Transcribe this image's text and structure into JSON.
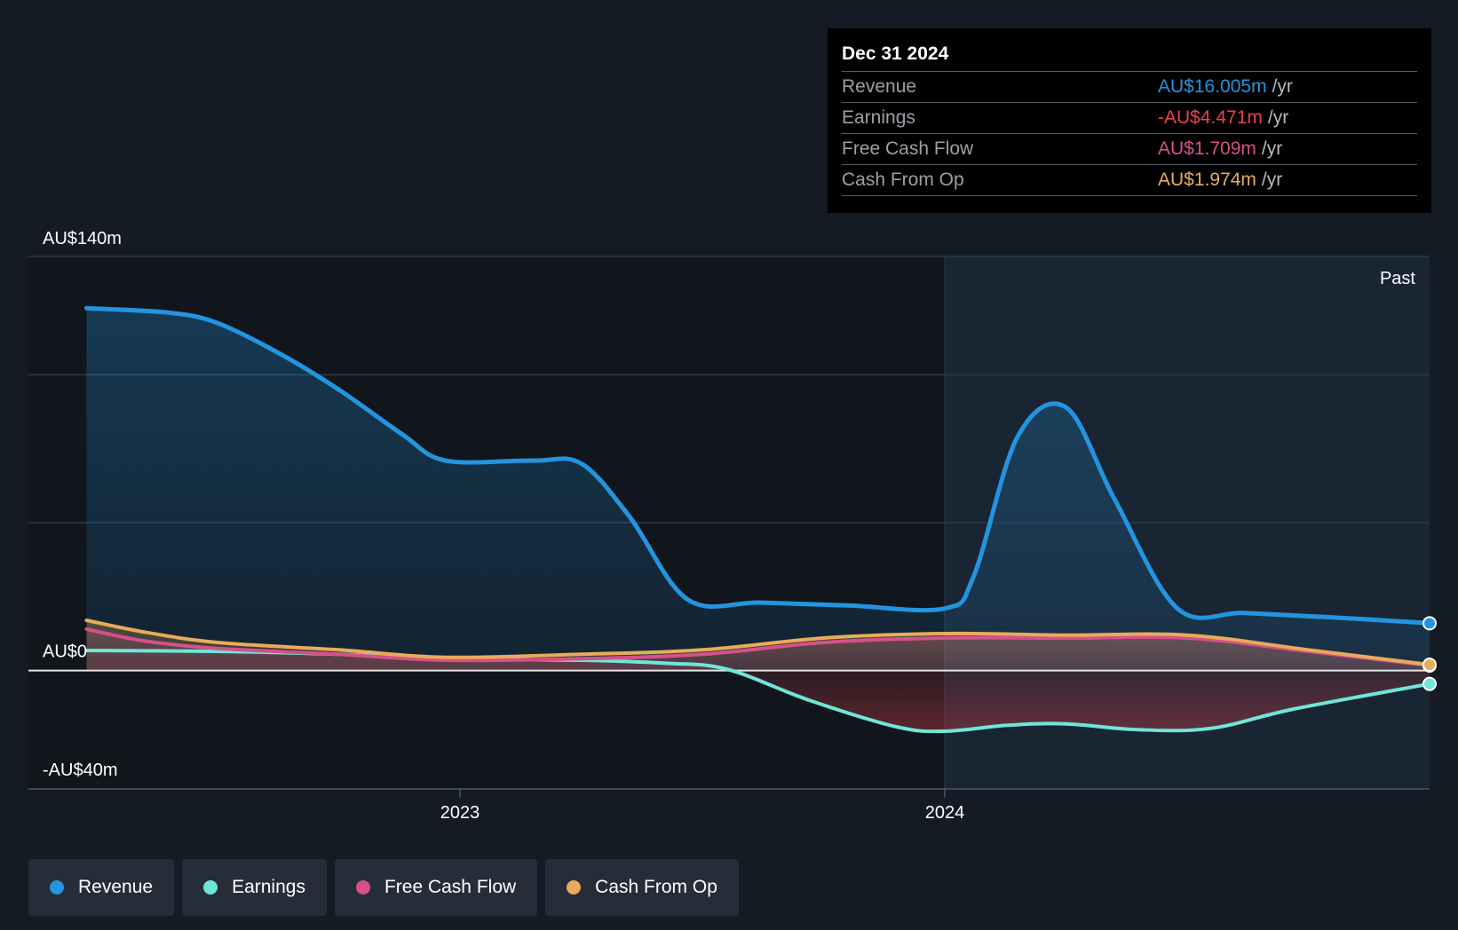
{
  "colors": {
    "background": "#151b24",
    "revenue": "#2394df",
    "earnings": "#6ee7d8",
    "free_cash_flow": "#d6508a",
    "cash_from_op": "#e9ab5a",
    "earnings_negative": "#e8424b"
  },
  "tooltip": {
    "date": "Dec 31 2024",
    "rows": [
      {
        "label": "Revenue",
        "value": "AU$16.005m",
        "unit": "/yr"
      },
      {
        "label": "Earnings",
        "value": "-AU$4.471m",
        "unit": "/yr"
      },
      {
        "label": "Free Cash Flow",
        "value": "AU$1.709m",
        "unit": "/yr"
      },
      {
        "label": "Cash From Op",
        "value": "AU$1.974m",
        "unit": "/yr"
      }
    ]
  },
  "legend": {
    "items": [
      {
        "label": "Revenue",
        "icon": "dot"
      },
      {
        "label": "Earnings",
        "icon": "dot"
      },
      {
        "label": "Free Cash Flow",
        "icon": "dot"
      },
      {
        "label": "Cash From Op",
        "icon": "dot"
      }
    ]
  },
  "chart_data": {
    "type": "area",
    "title": "",
    "xlabel": "",
    "ylabel": "",
    "ylim": [
      -40,
      140
    ],
    "y_tick_labels": [
      "AU$140m",
      "AU$0",
      "-AU$40m"
    ],
    "y_ticks": [
      140,
      0,
      -40
    ],
    "x_tick_labels": [
      "2023",
      "2024"
    ],
    "x_ticks": [
      2023.0,
      2024.0
    ],
    "xlim": [
      2022.11,
      2025.0
    ],
    "past_label": "Past",
    "past_region_start": 2024.0,
    "grid": true,
    "legend_position": "bottom-left",
    "series": [
      {
        "name": "Revenue",
        "key": "revenue",
        "points": [
          [
            2022.23,
            122.5
          ],
          [
            2022.4,
            121.0
          ],
          [
            2022.5,
            117.5
          ],
          [
            2022.63,
            107.0
          ],
          [
            2022.75,
            95.0
          ],
          [
            2022.88,
            80.0
          ],
          [
            2022.97,
            71.0
          ],
          [
            2023.15,
            71.0
          ],
          [
            2023.25,
            70.0
          ],
          [
            2023.35,
            52.0
          ],
          [
            2023.47,
            24.0
          ],
          [
            2023.62,
            23.0
          ],
          [
            2023.8,
            22.0
          ],
          [
            2024.0,
            21.0
          ],
          [
            2024.06,
            32.0
          ],
          [
            2024.15,
            79.0
          ],
          [
            2024.25,
            89.0
          ],
          [
            2024.35,
            58.0
          ],
          [
            2024.48,
            21.0
          ],
          [
            2024.62,
            19.5
          ],
          [
            2024.8,
            18.0
          ],
          [
            2025.0,
            16.0
          ]
        ]
      },
      {
        "name": "Earnings",
        "key": "earnings",
        "points": [
          [
            2022.23,
            6.8
          ],
          [
            2022.5,
            6.5
          ],
          [
            2022.75,
            5.5
          ],
          [
            2023.0,
            4.0
          ],
          [
            2023.25,
            3.5
          ],
          [
            2023.42,
            2.5
          ],
          [
            2023.55,
            0.5
          ],
          [
            2023.72,
            -10.0
          ],
          [
            2023.9,
            -19.0
          ],
          [
            2024.0,
            -20.5
          ],
          [
            2024.13,
            -18.5
          ],
          [
            2024.25,
            -18.0
          ],
          [
            2024.4,
            -20.0
          ],
          [
            2024.55,
            -19.5
          ],
          [
            2024.72,
            -13.0
          ],
          [
            2025.0,
            -4.5
          ]
        ]
      },
      {
        "name": "Free Cash Flow",
        "key": "free_cash_flow",
        "points": [
          [
            2022.23,
            14.0
          ],
          [
            2022.35,
            10.0
          ],
          [
            2022.5,
            7.5
          ],
          [
            2022.75,
            5.5
          ],
          [
            2022.97,
            3.5
          ],
          [
            2023.25,
            4.0
          ],
          [
            2023.5,
            5.5
          ],
          [
            2023.75,
            9.5
          ],
          [
            2024.0,
            11.0
          ],
          [
            2024.25,
            11.0
          ],
          [
            2024.5,
            11.0
          ],
          [
            2024.75,
            6.5
          ],
          [
            2025.0,
            1.7
          ]
        ]
      },
      {
        "name": "Cash From Op",
        "key": "cash_from_op",
        "points": [
          [
            2022.23,
            17.0
          ],
          [
            2022.35,
            13.0
          ],
          [
            2022.5,
            9.5
          ],
          [
            2022.75,
            7.0
          ],
          [
            2022.97,
            4.5
          ],
          [
            2023.25,
            5.5
          ],
          [
            2023.5,
            7.0
          ],
          [
            2023.75,
            11.0
          ],
          [
            2024.0,
            12.5
          ],
          [
            2024.25,
            12.0
          ],
          [
            2024.5,
            12.0
          ],
          [
            2024.75,
            7.0
          ],
          [
            2025.0,
            2.0
          ]
        ]
      }
    ]
  }
}
